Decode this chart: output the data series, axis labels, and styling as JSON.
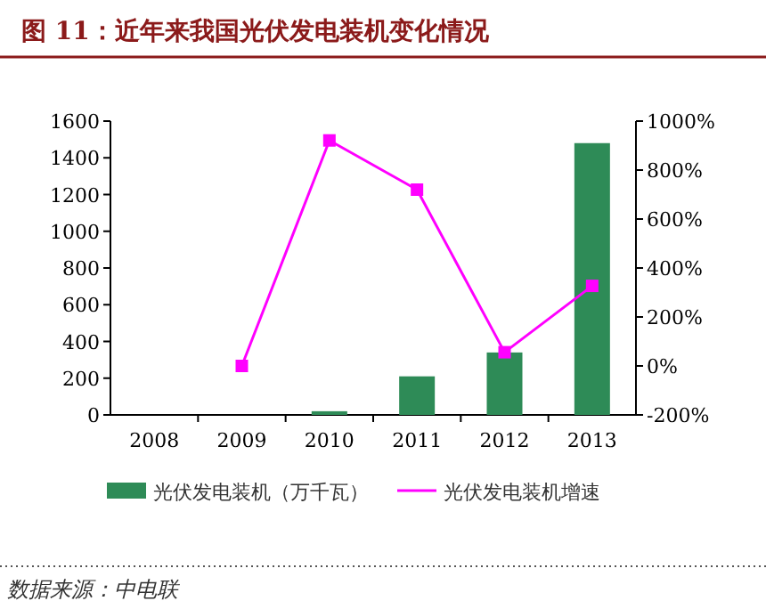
{
  "chart_data": {
    "type": "bar",
    "title": "图 11：近年来我国光伏发电装机变化情况",
    "categories": [
      "2008",
      "2009",
      "2010",
      "2011",
      "2012",
      "2013"
    ],
    "series": [
      {
        "name": "光伏发电装机（万千瓦）",
        "color": "#2e8b57",
        "values": [
          null,
          null,
          20,
          210,
          340,
          1480
        ]
      },
      {
        "name": "光伏发电装机增速",
        "type": "line",
        "axis": "y2",
        "color": "#ff00ff",
        "marker": "square",
        "values": [
          null,
          0,
          921,
          720,
          56,
          327
        ]
      }
    ],
    "ylim": [
      0,
      1600
    ],
    "yticks": [
      0,
      200,
      400,
      600,
      800,
      1000,
      1200,
      1400,
      1600
    ],
    "y2lim": [
      -200,
      1000
    ],
    "y2ticks": [
      {
        "value": -200,
        "label": "-200%"
      },
      {
        "value": 0,
        "label": "0%"
      },
      {
        "value": 200,
        "label": "200%"
      },
      {
        "value": 400,
        "label": "400%"
      },
      {
        "value": 600,
        "label": "600%"
      },
      {
        "value": 800,
        "label": "800%"
      },
      {
        "value": 1000,
        "label": "1000%"
      }
    ],
    "legend": "bottom",
    "annotations": [
      "数据来源：中电联"
    ]
  }
}
